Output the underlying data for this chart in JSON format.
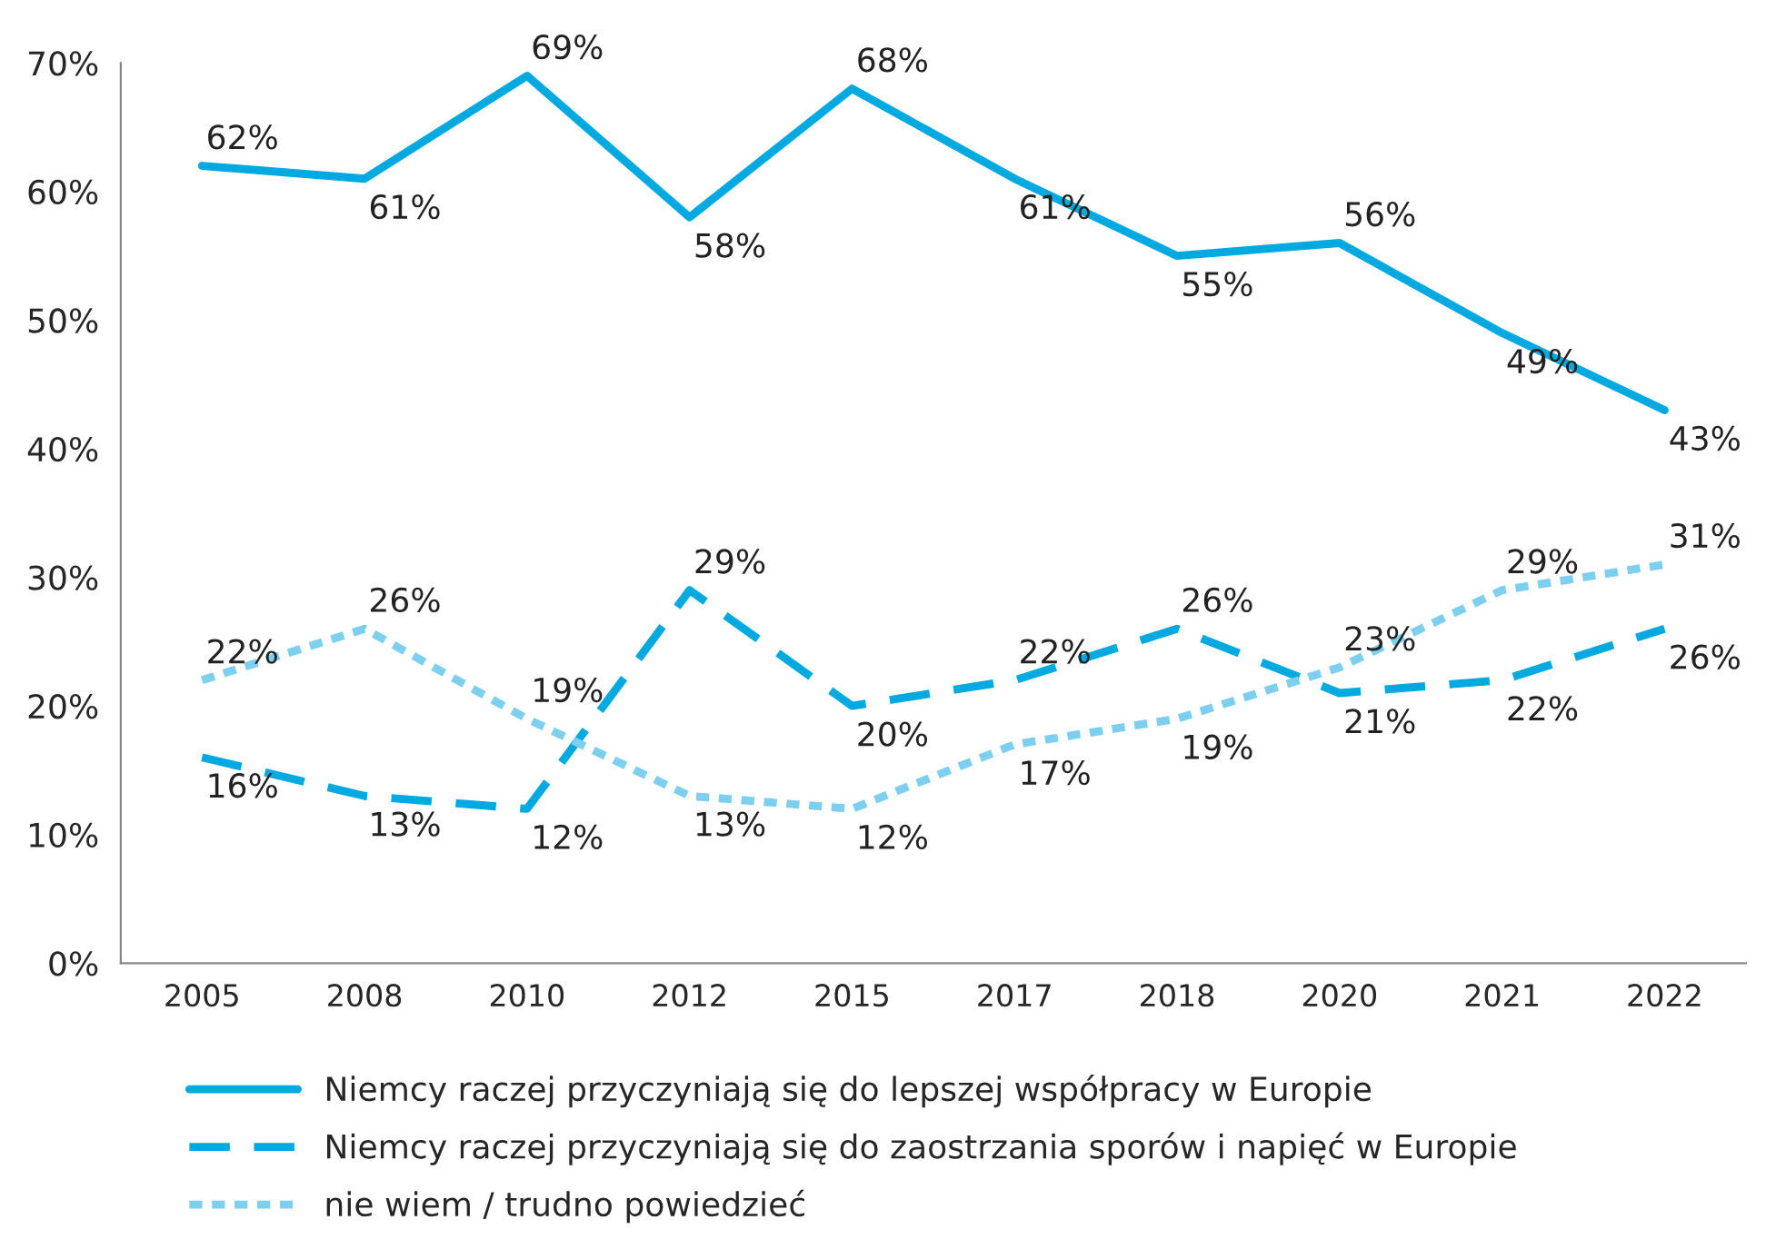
{
  "chart_data": {
    "type": "line",
    "categories": [
      "2005",
      "2008",
      "2010",
      "2012",
      "2015",
      "2017",
      "2018",
      "2020",
      "2021",
      "2022"
    ],
    "series": [
      {
        "name": "Niemcy raczej przyczyniają się do lepszej współpracy w Europie",
        "color": "#00a9e0",
        "line_style": "solid",
        "values": [
          62,
          61,
          69,
          58,
          68,
          61,
          55,
          56,
          49,
          43
        ],
        "value_labels": [
          "62%",
          "61%",
          "69%",
          "58%",
          "68%",
          "61%",
          "55%",
          "56%",
          "49%",
          "43%"
        ]
      },
      {
        "name": "Niemcy raczej przyczyniają się do zaostrzania sporów i napięć w Europie",
        "color": "#00a9e0",
        "line_style": "dashed",
        "values": [
          16,
          13,
          12,
          29,
          20,
          22,
          26,
          21,
          22,
          26
        ],
        "value_labels": [
          "16%",
          "13%",
          "12%",
          "29%",
          "20%",
          "22%",
          "26%",
          "21%",
          "22%",
          "26%"
        ]
      },
      {
        "name": "nie wiem / trudno powiedzieć",
        "color": "#7dcfef",
        "line_style": "dotted",
        "values": [
          22,
          26,
          19,
          13,
          12,
          17,
          19,
          23,
          29,
          31
        ],
        "value_labels": [
          "22%",
          "26%",
          "19%",
          "13%",
          "12%",
          "17%",
          "19%",
          "23%",
          "29%",
          "31%"
        ]
      }
    ],
    "ylim": [
      0,
      70
    ],
    "yticks": [
      {
        "value": 0,
        "label": "0%"
      },
      {
        "value": 10,
        "label": "10%"
      },
      {
        "value": 20,
        "label": "20%"
      },
      {
        "value": 30,
        "label": "30%"
      },
      {
        "value": 40,
        "label": "40%"
      },
      {
        "value": 50,
        "label": "50%"
      },
      {
        "value": 60,
        "label": "60%"
      },
      {
        "value": 70,
        "label": "70%"
      }
    ],
    "grid": false,
    "legend": "bottom",
    "marker": "none"
  }
}
